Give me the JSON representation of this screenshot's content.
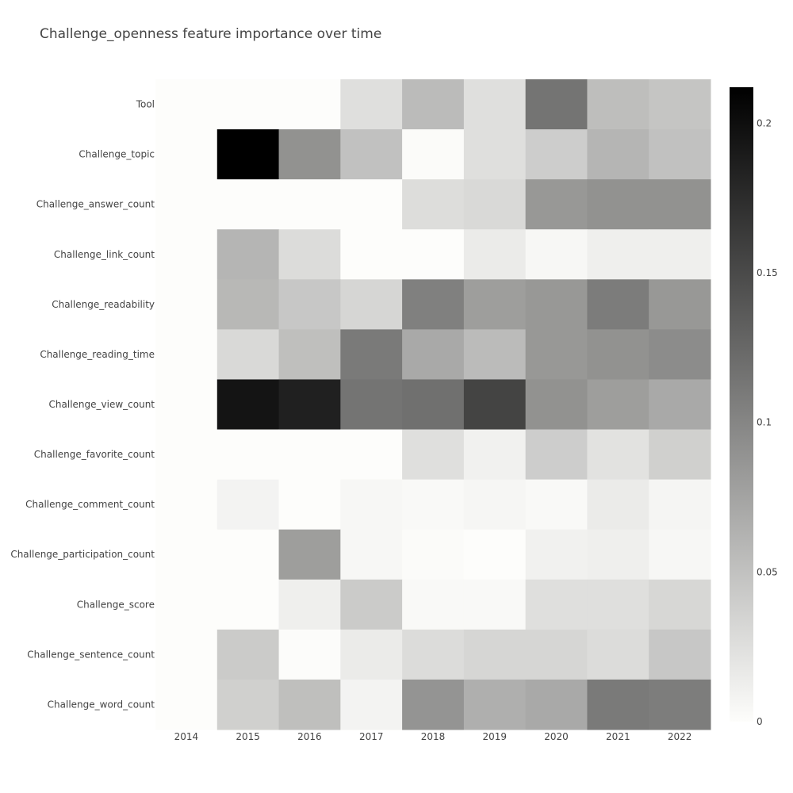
{
  "chart_data": {
    "type": "heatmap",
    "title": "Challenge_openness feature importance over time",
    "x": [
      "2014",
      "2015",
      "2016",
      "2017",
      "2018",
      "2019",
      "2020",
      "2021",
      "2022"
    ],
    "y": [
      "Tool",
      "Challenge_topic",
      "Challenge_answer_count",
      "Challenge_link_count",
      "Challenge_readability",
      "Challenge_reading_time",
      "Challenge_view_count",
      "Challenge_favorite_count",
      "Challenge_comment_count",
      "Challenge_participation_count",
      "Challenge_score",
      "Challenge_sentence_count",
      "Challenge_word_count"
    ],
    "z": [
      [
        0.0,
        0.0,
        0.0,
        0.025,
        0.055,
        0.025,
        0.115,
        0.053,
        0.047
      ],
      [
        0.0,
        0.212,
        0.09,
        0.05,
        0.002,
        0.025,
        0.04,
        0.06,
        0.05
      ],
      [
        0.0,
        0.0,
        0.0,
        0.0,
        0.027,
        0.03,
        0.085,
        0.09,
        0.09
      ],
      [
        0.0,
        0.06,
        0.028,
        0.0,
        0.0,
        0.015,
        0.005,
        0.012,
        0.012
      ],
      [
        0.0,
        0.058,
        0.045,
        0.033,
        0.105,
        0.08,
        0.085,
        0.108,
        0.085
      ],
      [
        0.0,
        0.03,
        0.052,
        0.11,
        0.07,
        0.055,
        0.085,
        0.09,
        0.095
      ],
      [
        0.0,
        0.195,
        0.185,
        0.115,
        0.118,
        0.155,
        0.09,
        0.08,
        0.07
      ],
      [
        0.0,
        0.0,
        0.0,
        0.0,
        0.025,
        0.01,
        0.04,
        0.023,
        0.038
      ],
      [
        0.0,
        0.008,
        0.0,
        0.005,
        0.003,
        0.006,
        0.003,
        0.015,
        0.007
      ],
      [
        0.0,
        0.0,
        0.08,
        0.005,
        0.002,
        0.0,
        0.01,
        0.012,
        0.005
      ],
      [
        0.0,
        0.0,
        0.012,
        0.042,
        0.003,
        0.003,
        0.025,
        0.025,
        0.032
      ],
      [
        0.0,
        0.042,
        0.001,
        0.015,
        0.028,
        0.033,
        0.033,
        0.028,
        0.045
      ],
      [
        0.0,
        0.038,
        0.052,
        0.008,
        0.088,
        0.065,
        0.07,
        0.11,
        0.107
      ]
    ],
    "zlim": [
      0,
      0.212
    ],
    "colorscale": {
      "low": "#fdfdfb",
      "high": "#000000"
    },
    "colorbar": {
      "tickvals": [
        0,
        0.05,
        0.1,
        0.15,
        0.2
      ],
      "ticktext": [
        "0",
        "0.05",
        "0.1",
        "0.15",
        "0.2"
      ]
    }
  }
}
